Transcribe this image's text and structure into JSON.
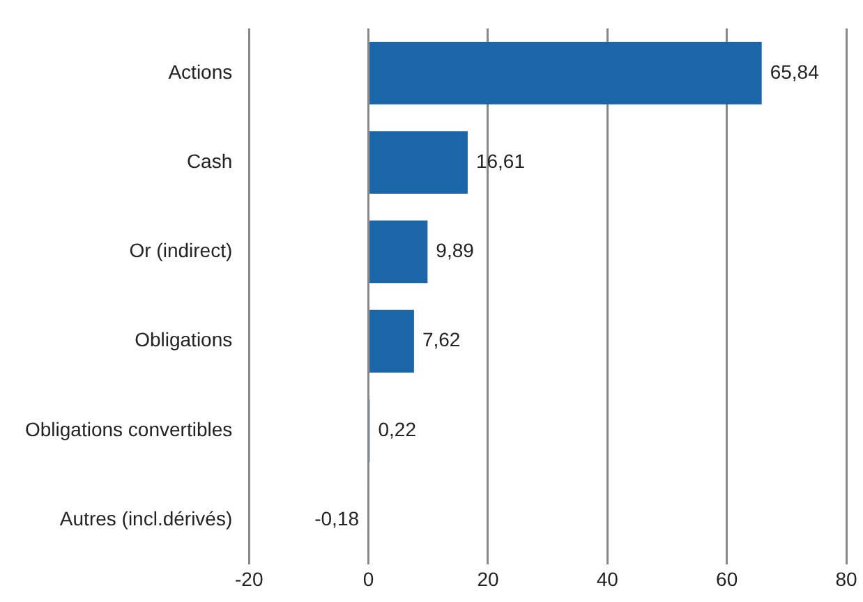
{
  "chart_data": {
    "type": "bar",
    "orientation": "horizontal",
    "categories": [
      "Actions",
      "Cash",
      "Or (indirect)",
      "Obligations",
      "Obligations convertibles",
      "Autres (incl.dérivés)"
    ],
    "values": [
      65.84,
      16.61,
      9.89,
      7.62,
      0.22,
      -0.18
    ],
    "value_labels": [
      "65,84",
      "16,61",
      "9,89",
      "7,62",
      "0,22",
      "-0,18"
    ],
    "color": "#1a66a8",
    "xlim": [
      -20,
      80
    ],
    "xticks": [
      -20,
      0,
      20,
      40,
      60,
      80
    ],
    "grid": "x"
  }
}
